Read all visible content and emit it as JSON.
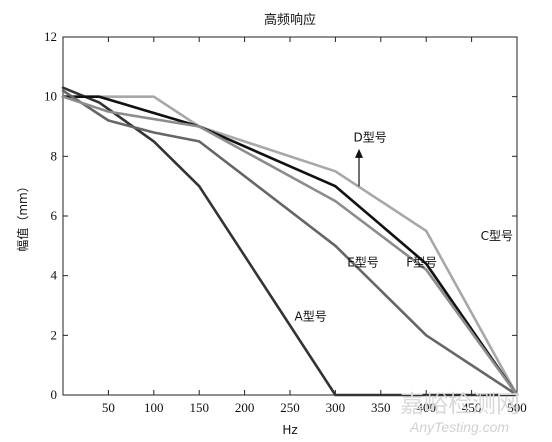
{
  "chart_data": {
    "type": "line",
    "title": "高频响应",
    "xlabel": "Hz",
    "ylabel": "幅值（mm）",
    "xlim": [
      0,
      500
    ],
    "ylim": [
      0,
      12
    ],
    "xticks": [
      50,
      100,
      150,
      200,
      250,
      300,
      350,
      400,
      450,
      500
    ],
    "yticks": [
      0,
      2,
      4,
      6,
      8,
      10,
      12
    ],
    "grid": false,
    "legend": "none",
    "series": [
      {
        "name": "A型号",
        "color": "#333333",
        "points": [
          [
            0,
            10.3
          ],
          [
            40,
            9.8
          ],
          [
            100,
            8.5
          ],
          [
            150,
            7.0
          ],
          [
            300,
            0.0
          ],
          [
            400,
            0.0
          ],
          [
            500,
            0.0
          ]
        ]
      },
      {
        "name": "C型号",
        "color": "#a8a8a8",
        "points": [
          [
            0,
            10.0
          ],
          [
            100,
            10.0
          ],
          [
            150,
            9.0
          ],
          [
            300,
            7.5
          ],
          [
            400,
            5.5
          ],
          [
            500,
            0.0
          ]
        ]
      },
      {
        "name": "D型号",
        "color": "#111111",
        "points": [
          [
            0,
            10.0
          ],
          [
            40,
            10.0
          ],
          [
            150,
            9.0
          ],
          [
            300,
            7.0
          ],
          [
            400,
            4.4
          ],
          [
            500,
            0.0
          ]
        ]
      },
      {
        "name": "E型号",
        "color": "#666666",
        "points": [
          [
            0,
            10.2
          ],
          [
            50,
            9.2
          ],
          [
            100,
            8.8
          ],
          [
            150,
            8.5
          ],
          [
            300,
            5.0
          ],
          [
            400,
            2.0
          ],
          [
            500,
            0.0
          ]
        ]
      },
      {
        "name": "F型号",
        "color": "#8c8c8c",
        "points": [
          [
            0,
            10.0
          ],
          [
            50,
            9.5
          ],
          [
            150,
            9.0
          ],
          [
            300,
            6.5
          ],
          [
            400,
            4.2
          ],
          [
            500,
            0.0
          ]
        ]
      }
    ],
    "annotations": [
      {
        "text": "A型号",
        "x": 255,
        "y": 2.5
      },
      {
        "text": "C型号",
        "x": 460,
        "y": 5.2
      },
      {
        "text": "D型号",
        "x": 320,
        "y": 8.5
      },
      {
        "text": "E型号",
        "x": 313,
        "y": 4.3
      },
      {
        "text": "F型号",
        "x": 378,
        "y": 4.3
      }
    ]
  },
  "watermark": {
    "cn": "嘉峪检测网",
    "en": "AnyTesting.com"
  }
}
